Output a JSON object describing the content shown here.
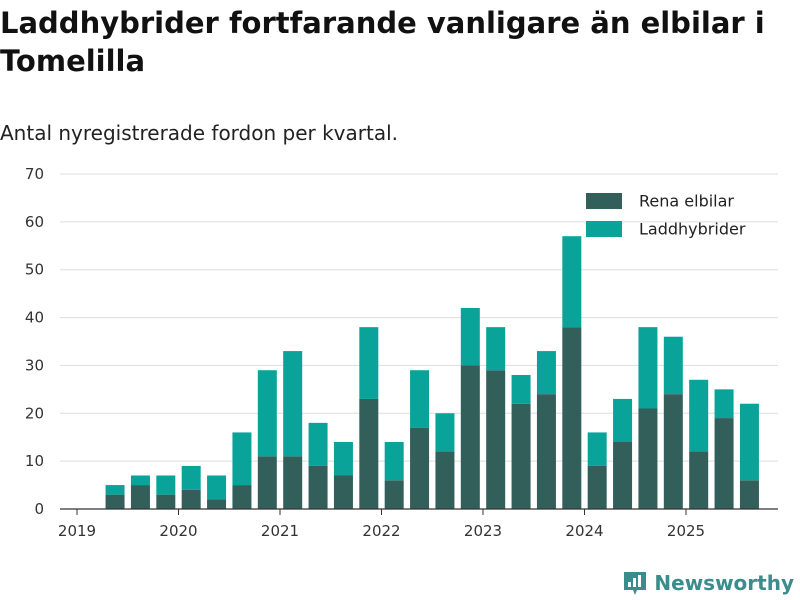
{
  "header": {
    "title": "Laddhybrider fortfarande vanligare än elbilar i Tomelilla",
    "subtitle": "Antal nyregistrerade fordon per kvartal."
  },
  "brand": {
    "name": "Newsworthy",
    "icon": "newsworthy-logo-icon"
  },
  "colors": {
    "elbilar": "#335f5b",
    "laddhybrider": "#0aa39a",
    "grid": "#dddddd",
    "axis": "#333333",
    "brand": "#3b8c8c"
  },
  "chart_data": {
    "type": "bar",
    "stacked": true,
    "title": "Laddhybrider fortfarande vanligare än elbilar i Tomelilla",
    "subtitle": "Antal nyregistrerade fordon per kvartal.",
    "xlabel": "",
    "ylabel": "",
    "ylim": [
      0,
      70
    ],
    "yticks": [
      0,
      10,
      20,
      30,
      40,
      50,
      60,
      70
    ],
    "xticks": [
      "2019",
      "2020",
      "2021",
      "2022",
      "2023",
      "2024",
      "2025"
    ],
    "legend_position": "top-right",
    "categories": [
      "2019 Q2",
      "2019 Q3",
      "2019 Q4",
      "2020 Q1",
      "2020 Q2",
      "2020 Q3",
      "2020 Q4",
      "2021 Q1",
      "2021 Q2",
      "2021 Q3",
      "2021 Q4",
      "2022 Q1",
      "2022 Q2",
      "2022 Q3",
      "2022 Q4",
      "2023 Q1",
      "2023 Q2",
      "2023 Q3",
      "2023 Q4",
      "2024 Q1",
      "2024 Q2",
      "2024 Q3",
      "2024 Q4",
      "2025 Q1",
      "2025 Q2",
      "2025 Q3"
    ],
    "series": [
      {
        "name": "Rena elbilar",
        "values": [
          3,
          5,
          3,
          4,
          2,
          5,
          11,
          11,
          9,
          7,
          23,
          6,
          17,
          12,
          30,
          29,
          22,
          24,
          38,
          9,
          14,
          21,
          24,
          12,
          19,
          6
        ]
      },
      {
        "name": "Laddhybrider",
        "values": [
          2,
          2,
          4,
          5,
          5,
          11,
          18,
          22,
          9,
          7,
          15,
          8,
          12,
          8,
          12,
          9,
          6,
          9,
          19,
          7,
          9,
          17,
          12,
          15,
          6,
          16
        ]
      }
    ]
  }
}
